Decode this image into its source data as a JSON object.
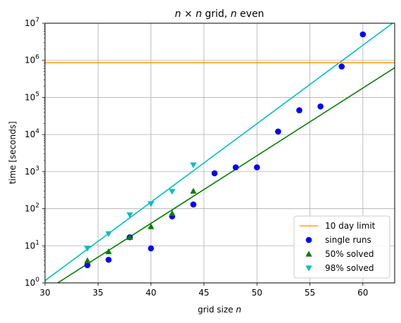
{
  "chart_data": {
    "type": "scatter",
    "title": "n × n grid, n even",
    "xlabel": "grid size n",
    "ylabel": "time [seconds]",
    "xlim": [
      30,
      63
    ],
    "ylim": [
      1,
      10000000
    ],
    "yscale": "log",
    "grid": true,
    "legend_position": "bottom-right",
    "x_ticks": [
      30,
      35,
      40,
      45,
      50,
      55,
      60
    ],
    "y_ticks": [
      {
        "value": 1,
        "base": "10",
        "exp": "0"
      },
      {
        "value": 10,
        "base": "10",
        "exp": "1"
      },
      {
        "value": 100,
        "base": "10",
        "exp": "2"
      },
      {
        "value": 1000,
        "base": "10",
        "exp": "3"
      },
      {
        "value": 10000,
        "base": "10",
        "exp": "4"
      },
      {
        "value": 100000,
        "base": "10",
        "exp": "5"
      },
      {
        "value": 1000000,
        "base": "10",
        "exp": "6"
      },
      {
        "value": 10000000,
        "base": "10",
        "exp": "7"
      }
    ],
    "series": [
      {
        "name": "10 day limit",
        "kind": "hline",
        "color": "#ff9f1a",
        "y": 864000
      },
      {
        "name": "single runs",
        "kind": "points",
        "marker": "circle",
        "color": "#0000ff",
        "x": [
          34,
          36,
          38,
          40,
          42,
          44,
          46,
          48,
          50,
          52,
          54,
          56,
          58,
          60
        ],
        "y": [
          3,
          4.2,
          17,
          8.5,
          62,
          130,
          900,
          1300,
          1300,
          12000,
          45000,
          57000,
          680000,
          5000000
        ]
      },
      {
        "name": "50% solved",
        "kind": "points",
        "marker": "triangle-up",
        "color": "#008000",
        "x": [
          34,
          36,
          38,
          40,
          42,
          44
        ],
        "y": [
          4,
          7,
          17,
          33,
          75,
          300
        ]
      },
      {
        "name": "98% solved",
        "kind": "points",
        "marker": "triangle-down",
        "color": "#00bfbf",
        "x": [
          34,
          36,
          38,
          40,
          42,
          44
        ],
        "y": [
          8.5,
          21,
          68,
          135,
          290,
          1500
        ]
      }
    ],
    "fit_lines": [
      {
        "color": "#008000",
        "x": [
          31.2,
          63
        ],
        "y": [
          1,
          630000
        ]
      },
      {
        "color": "#00bfbf",
        "x": [
          30,
          63
        ],
        "y": [
          1.15,
          11000000
        ]
      }
    ]
  }
}
